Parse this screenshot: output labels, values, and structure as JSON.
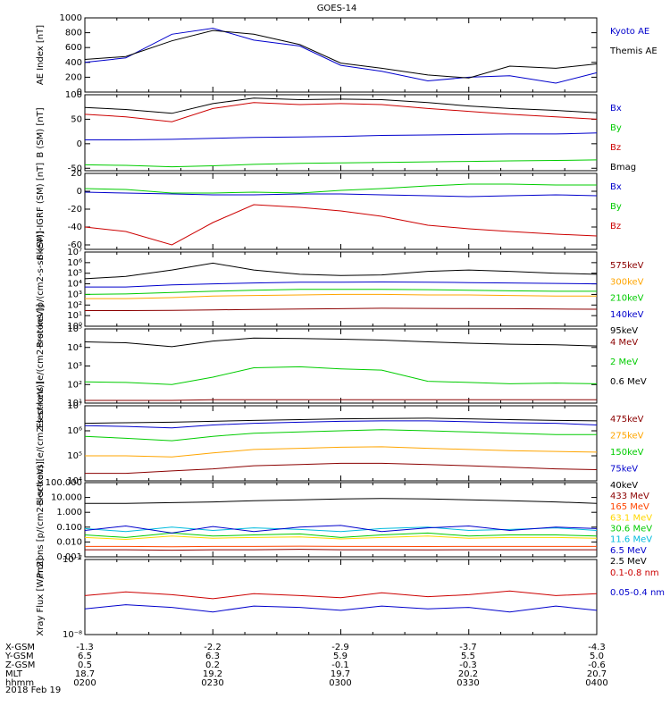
{
  "title": "GOES-14",
  "date_label": "2018 Feb 19",
  "footer": {
    "rows": [
      {
        "label": "X-GSM",
        "values": [
          "-1.3",
          "-2.2",
          "-2.9",
          "-3.7",
          "-4.3"
        ]
      },
      {
        "label": "Y-GSM",
        "values": [
          "6.5",
          "6.3",
          "5.9",
          "5.5",
          "5.0"
        ]
      },
      {
        "label": "Z-GSM",
        "values": [
          "0.5",
          "0.2",
          "-0.1",
          "-0.3",
          "-0.6"
        ]
      },
      {
        "label": "MLT",
        "values": [
          "18.7",
          "19.2",
          "19.7",
          "20.2",
          "20.7"
        ]
      },
      {
        "label": "hhmm",
        "values": [
          "0200",
          "0230",
          "0300",
          "0330",
          "0400"
        ]
      }
    ]
  },
  "chart_data": [
    {
      "type": "line",
      "ylabel": "AE Index [nT]",
      "yscale": "linear",
      "ylim": [
        0,
        1000
      ],
      "ticks": [
        0,
        200,
        400,
        600,
        800,
        1000
      ],
      "tick_labels": [
        "0",
        "200",
        "400",
        "600",
        "800",
        "1000"
      ],
      "x": [
        0,
        0.08,
        0.17,
        0.25,
        0.33,
        0.42,
        0.5,
        0.58,
        0.67,
        0.75,
        0.83,
        0.92,
        1
      ],
      "series": [
        {
          "name": "Kyoto AE",
          "color": "#0000cc",
          "values": [
            400,
            460,
            780,
            860,
            700,
            620,
            360,
            280,
            150,
            200,
            220,
            120,
            260
          ]
        },
        {
          "name": "Themis AE",
          "color": "#000000",
          "values": [
            440,
            480,
            690,
            830,
            780,
            640,
            390,
            320,
            230,
            190,
            350,
            320,
            380
          ]
        }
      ]
    },
    {
      "type": "line",
      "ylabel": "B (SM) [nT]",
      "yscale": "linear",
      "ylim": [
        -55,
        100
      ],
      "ticks": [
        -50,
        0,
        50,
        100
      ],
      "tick_labels": [
        "-50",
        "0",
        "50",
        "100"
      ],
      "x": [
        0,
        0.08,
        0.17,
        0.25,
        0.33,
        0.42,
        0.5,
        0.58,
        0.67,
        0.75,
        0.83,
        0.92,
        1
      ],
      "series": [
        {
          "name": "Bx",
          "color": "#0000cc",
          "values": [
            8,
            8,
            9,
            11,
            13,
            14,
            15,
            17,
            18,
            19,
            20,
            20,
            22
          ]
        },
        {
          "name": "By",
          "color": "#00cc00",
          "values": [
            -43,
            -44,
            -47,
            -45,
            -42,
            -40,
            -39,
            -38,
            -37,
            -36,
            -35,
            -34,
            -33
          ]
        },
        {
          "name": "Bz",
          "color": "#cc0000",
          "values": [
            60,
            55,
            45,
            72,
            84,
            80,
            82,
            80,
            72,
            66,
            60,
            55,
            50
          ]
        },
        {
          "name": "Bmag",
          "color": "#000000",
          "values": [
            74,
            70,
            62,
            82,
            93,
            90,
            91,
            90,
            84,
            77,
            72,
            68,
            63
          ]
        }
      ]
    },
    {
      "type": "line",
      "ylabel": "B (SM)-IGRF (SM) [nT]",
      "yscale": "linear",
      "ylim": [
        -65,
        20
      ],
      "ticks": [
        -60,
        -40,
        -20,
        0,
        20
      ],
      "tick_labels": [
        "-60",
        "-40",
        "-20",
        "0",
        "20"
      ],
      "x": [
        0,
        0.08,
        0.17,
        0.25,
        0.33,
        0.42,
        0.5,
        0.58,
        0.67,
        0.75,
        0.83,
        0.92,
        1
      ],
      "series": [
        {
          "name": "Bx",
          "color": "#0000cc",
          "values": [
            -1,
            -2,
            -3,
            -4,
            -4,
            -3,
            -3,
            -4,
            -5,
            -6,
            -5,
            -4,
            -5
          ]
        },
        {
          "name": "By",
          "color": "#00cc00",
          "values": [
            3,
            2,
            -2,
            -2,
            -1,
            -2,
            1,
            3,
            6,
            8,
            8,
            7,
            7
          ]
        },
        {
          "name": "Bz",
          "color": "#cc0000",
          "values": [
            -40,
            -45,
            -60,
            -35,
            -15,
            -18,
            -22,
            -28,
            -38,
            -42,
            -45,
            -48,
            -50
          ]
        }
      ]
    },
    {
      "type": "line",
      "ylabel": "Protons [p/(cm2-s-sr-keV)]",
      "yscale": "log",
      "ylim": [
        1,
        10000000
      ],
      "ticks": [
        1,
        10,
        100,
        1000,
        10000,
        100000,
        1000000,
        10000000
      ],
      "tick_labels": [
        "10⁰",
        "10¹",
        "10²",
        "10³",
        "10⁴",
        "10⁵",
        "10⁶",
        "10⁷"
      ],
      "x": [
        0,
        0.08,
        0.17,
        0.25,
        0.33,
        0.42,
        0.5,
        0.58,
        0.67,
        0.75,
        0.83,
        0.92,
        1
      ],
      "series": [
        {
          "name": "575keV",
          "color": "#8b0000",
          "values": [
            30,
            30,
            32,
            35,
            38,
            42,
            45,
            50,
            48,
            46,
            45,
            42,
            40
          ]
        },
        {
          "name": "300keV",
          "color": "#ffa500",
          "values": [
            400,
            400,
            500,
            700,
            800,
            900,
            1000,
            1000,
            900,
            900,
            800,
            700,
            700
          ]
        },
        {
          "name": "210keV",
          "color": "#00cc00",
          "values": [
            1000,
            1100,
            1500,
            2000,
            2500,
            3000,
            3000,
            3000,
            2800,
            2500,
            2200,
            2000,
            2000
          ]
        },
        {
          "name": "140keV",
          "color": "#0000cc",
          "values": [
            5000,
            5000,
            8000,
            10000,
            12000,
            14000,
            14000,
            15000,
            14000,
            13000,
            12000,
            11000,
            10000
          ]
        },
        {
          "name": "95keV",
          "color": "#000000",
          "values": [
            30000,
            50000,
            200000,
            900000,
            200000,
            80000,
            60000,
            70000,
            150000,
            200000,
            150000,
            100000,
            80000
          ]
        }
      ]
    },
    {
      "type": "line",
      "ylabel": "Electrons [e/(cm2-s-sr-keV)]",
      "yscale": "log",
      "ylim": [
        10,
        100000
      ],
      "ticks": [
        10,
        100,
        1000,
        10000,
        100000
      ],
      "tick_labels": [
        "10¹",
        "10²",
        "10³",
        "10⁴",
        "10⁵"
      ],
      "x": [
        0,
        0.08,
        0.17,
        0.25,
        0.33,
        0.42,
        0.5,
        0.58,
        0.67,
        0.75,
        0.83,
        0.92,
        1
      ],
      "series": [
        {
          "name": "4 MeV",
          "color": "#8b0000",
          "values": [
            14,
            14,
            14,
            15,
            15,
            15,
            15,
            15,
            15,
            15,
            15,
            15,
            15
          ]
        },
        {
          "name": "2 MeV",
          "color": "#00cc00",
          "values": [
            140,
            130,
            100,
            250,
            800,
            900,
            700,
            600,
            150,
            130,
            110,
            120,
            110
          ]
        },
        {
          "name": "0.6 MeV",
          "color": "#000000",
          "values": [
            20000,
            18000,
            11000,
            22000,
            32000,
            30000,
            28000,
            25000,
            20000,
            17000,
            15000,
            14000,
            12000
          ]
        }
      ]
    },
    {
      "type": "line",
      "ylabel": "Electrons [e/(cm2-s-sr-keV)]",
      "yscale": "log",
      "ylim": [
        10000,
        10000000
      ],
      "ticks": [
        10000,
        100000,
        1000000,
        10000000
      ],
      "tick_labels": [
        "10⁴",
        "10⁵",
        "10⁶",
        "10⁷"
      ],
      "x": [
        0,
        0.08,
        0.17,
        0.25,
        0.33,
        0.42,
        0.5,
        0.58,
        0.67,
        0.75,
        0.83,
        0.92,
        1
      ],
      "series": [
        {
          "name": "475keV",
          "color": "#8b0000",
          "values": [
            20000,
            20000,
            25000,
            30000,
            40000,
            45000,
            50000,
            50000,
            45000,
            40000,
            35000,
            30000,
            28000
          ]
        },
        {
          "name": "275keV",
          "color": "#ffa500",
          "values": [
            100000,
            100000,
            90000,
            130000,
            180000,
            200000,
            220000,
            230000,
            200000,
            180000,
            160000,
            150000,
            140000
          ]
        },
        {
          "name": "150keV",
          "color": "#00cc00",
          "values": [
            600000,
            500000,
            400000,
            600000,
            800000,
            900000,
            1000000,
            1100000,
            1000000,
            900000,
            800000,
            700000,
            700000
          ]
        },
        {
          "name": "75keV",
          "color": "#0000cc",
          "values": [
            1600000,
            1500000,
            1300000,
            1700000,
            2000000,
            2200000,
            2400000,
            2500000,
            2500000,
            2300000,
            2100000,
            2000000,
            1700000
          ]
        },
        {
          "name": "40keV",
          "color": "#000000",
          "values": [
            2000000,
            2100000,
            2200000,
            2400000,
            2600000,
            2800000,
            3000000,
            3100000,
            3200000,
            3000000,
            2800000,
            2600000,
            2500000
          ]
        }
      ]
    },
    {
      "type": "line",
      "ylabel": "Protons [p/(cm2-s-sr-keV)]",
      "yscale": "log",
      "ylim": [
        0.001,
        100
      ],
      "ticks": [
        0.001,
        0.01,
        0.1,
        1,
        10,
        100
      ],
      "tick_labels": [
        "0.001",
        "0.010",
        "0.100",
        "1.000",
        "10.000",
        "100.000"
      ],
      "x": [
        0,
        0.08,
        0.17,
        0.25,
        0.33,
        0.42,
        0.5,
        0.58,
        0.67,
        0.75,
        0.83,
        0.92,
        1
      ],
      "series": [
        {
          "name": "433 MeV",
          "color": "#8b0000",
          "values": [
            0.003,
            0.003,
            0.0028,
            0.003,
            0.003,
            0.0032,
            0.003,
            0.003,
            0.0029,
            0.003,
            0.003,
            0.003,
            0.003
          ]
        },
        {
          "name": "165 MeV",
          "color": "#ff4500",
          "values": [
            0.005,
            0.005,
            0.0048,
            0.005,
            0.005,
            0.0052,
            0.005,
            0.005,
            0.0049,
            0.005,
            0.005,
            0.005,
            0.005
          ]
        },
        {
          "name": "63.1 MeV",
          "color": "#ffd700",
          "values": [
            0.02,
            0.015,
            0.025,
            0.018,
            0.02,
            0.022,
            0.016,
            0.02,
            0.025,
            0.018,
            0.02,
            0.02,
            0.018
          ]
        },
        {
          "name": "30.6 MeV",
          "color": "#00cc00",
          "values": [
            0.03,
            0.02,
            0.04,
            0.025,
            0.03,
            0.035,
            0.02,
            0.03,
            0.04,
            0.025,
            0.03,
            0.03,
            0.025
          ]
        },
        {
          "name": "11.6 MeV",
          "color": "#00bbdd",
          "values": [
            0.08,
            0.05,
            0.1,
            0.06,
            0.09,
            0.07,
            0.05,
            0.08,
            0.1,
            0.06,
            0.07,
            0.09,
            0.06
          ]
        },
        {
          "name": "6.5 MeV",
          "color": "#0000cc",
          "values": [
            0.06,
            0.12,
            0.04,
            0.11,
            0.05,
            0.1,
            0.13,
            0.05,
            0.09,
            0.12,
            0.06,
            0.1,
            0.08
          ]
        },
        {
          "name": "2.5 MeV",
          "color": "#000000",
          "values": [
            4,
            4,
            4.5,
            5,
            6,
            7,
            8,
            8.5,
            8,
            7,
            6,
            5,
            4
          ]
        }
      ]
    },
    {
      "type": "line",
      "ylabel": "Xray Flux [W/m2]",
      "yscale": "log",
      "ylim": [
        1e-08,
        1e-07
      ],
      "ticks": [
        1e-08,
        1e-07
      ],
      "tick_labels": [
        "10⁻⁸",
        "10⁻⁷"
      ],
      "x": [
        0,
        0.08,
        0.17,
        0.25,
        0.33,
        0.42,
        0.5,
        0.58,
        0.67,
        0.75,
        0.83,
        0.92,
        1
      ],
      "series": [
        {
          "name": "0.1-0.8 nm",
          "color": "#cc0000",
          "values": [
            3.3e-08,
            3.7e-08,
            3.4e-08,
            3e-08,
            3.5e-08,
            3.3e-08,
            3.1e-08,
            3.6e-08,
            3.2e-08,
            3.4e-08,
            3.8e-08,
            3.3e-08,
            3.5e-08
          ]
        },
        {
          "name": "0.05-0.4 nm",
          "color": "#0000cc",
          "values": [
            2.2e-08,
            2.5e-08,
            2.3e-08,
            2e-08,
            2.4e-08,
            2.3e-08,
            2.1e-08,
            2.4e-08,
            2.2e-08,
            2.3e-08,
            2e-08,
            2.4e-08,
            2.1e-08
          ]
        }
      ]
    }
  ]
}
